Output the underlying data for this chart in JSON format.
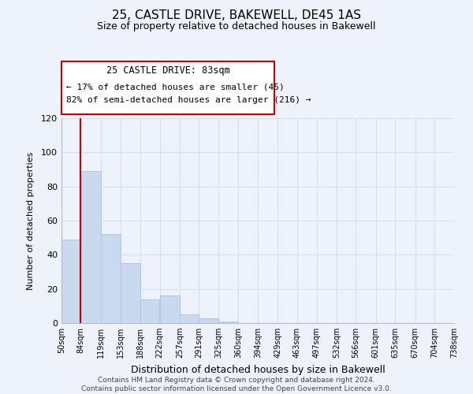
{
  "title": "25, CASTLE DRIVE, BAKEWELL, DE45 1AS",
  "subtitle": "Size of property relative to detached houses in Bakewell",
  "xlabel": "Distribution of detached houses by size in Bakewell",
  "ylabel": "Number of detached properties",
  "bin_edges": [
    50,
    84,
    119,
    153,
    188,
    222,
    257,
    291,
    325,
    360,
    394,
    429,
    463,
    497,
    532,
    566,
    601,
    635,
    670,
    704,
    738
  ],
  "bin_labels": [
    "50sqm",
    "84sqm",
    "119sqm",
    "153sqm",
    "188sqm",
    "222sqm",
    "257sqm",
    "291sqm",
    "325sqm",
    "360sqm",
    "394sqm",
    "429sqm",
    "463sqm",
    "497sqm",
    "532sqm",
    "566sqm",
    "601sqm",
    "635sqm",
    "670sqm",
    "704sqm",
    "738sqm"
  ],
  "counts": [
    49,
    89,
    52,
    35,
    14,
    16,
    5,
    3,
    1,
    0,
    0,
    0,
    0,
    0,
    0,
    0,
    0,
    0,
    0,
    0
  ],
  "bar_color": "#c9d9ef",
  "bar_edge_color": "#aec6e8",
  "grid_color": "#d4dff0",
  "property_line_x": 83,
  "property_line_color": "#cc0000",
  "ylim": [
    0,
    120
  ],
  "yticks": [
    0,
    20,
    40,
    60,
    80,
    100,
    120
  ],
  "annotation_line1": "25 CASTLE DRIVE: 83sqm",
  "annotation_line2": "← 17% of detached houses are smaller (45)",
  "annotation_line3": "82% of semi-detached houses are larger (216) →",
  "footer_line1": "Contains HM Land Registry data © Crown copyright and database right 2024.",
  "footer_line2": "Contains public sector information licensed under the Open Government Licence v3.0.",
  "background_color": "#eef2fb"
}
